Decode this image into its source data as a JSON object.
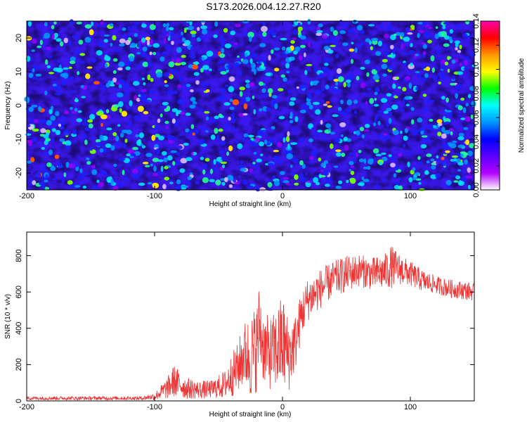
{
  "title": "S173.2026.004.12.27.R20",
  "chart_data": [
    {
      "type": "heatmap",
      "xlabel": "Height of straight line (km)",
      "ylabel": "Frequency (Hz)",
      "xlim": [
        -200,
        150
      ],
      "ylim": [
        -25,
        25
      ],
      "x_ticks": [
        -200,
        -100,
        0,
        100
      ],
      "x_tick_labels": [
        "-200",
        "-100",
        "0",
        "100"
      ],
      "y_ticks": [
        -20,
        -10,
        0,
        10,
        20
      ],
      "y_tick_labels": [
        "-20",
        "-10",
        "0",
        "10",
        "20"
      ],
      "colorbar": {
        "label": "Normalized spectral amplitude",
        "range": [
          0.0,
          0.14
        ],
        "ticks": [
          0.0,
          0.02,
          0.04,
          0.06,
          0.08,
          0.1,
          0.12,
          0.14
        ],
        "tick_labels": [
          "0.00",
          "0.02",
          "0.04",
          "0.06",
          "0.08",
          "0.10",
          "0.12",
          "0.14"
        ],
        "colors": [
          "#ffffff",
          "#b400ff",
          "#5a00ff",
          "#0000ff",
          "#0096ff",
          "#00ffff",
          "#00ff00",
          "#ffff00",
          "#ff9600",
          "#ff0000",
          "#ff00aa"
        ]
      },
      "description_values": "noise field: amplitudes mostly 0.02–0.05 (blue), frequent 0.05–0.07 patches (cyan/green), rare peaks up to ~0.12 (yellow/orange/red)"
    },
    {
      "type": "line",
      "xlabel": "Height of straight line (km)",
      "ylabel": "SNR (10 * v/v)",
      "xlim": [
        -200,
        150
      ],
      "ylim": [
        0,
        930
      ],
      "x_ticks": [
        -200,
        -100,
        0,
        100
      ],
      "x_tick_labels": [
        "-200",
        "-100",
        "0",
        "100"
      ],
      "y_ticks": [
        0,
        200,
        400,
        600,
        800
      ],
      "y_tick_labels": [
        "0",
        "200",
        "400",
        "600",
        "800"
      ],
      "series": [
        {
          "name": "SNR",
          "color": "#ee3333",
          "envelope_x": [
            -200,
            -150,
            -110,
            -100,
            -90,
            -85,
            -75,
            -65,
            -55,
            -45,
            -40,
            -35,
            -30,
            -25,
            -20,
            -18,
            -15,
            -10,
            -5,
            0,
            5,
            10,
            15,
            20,
            30,
            40,
            50,
            60,
            70,
            80,
            85,
            90,
            100,
            110,
            120,
            130,
            140,
            150
          ],
          "envelope_mid": [
            15,
            15,
            15,
            25,
            70,
            110,
            70,
            60,
            65,
            90,
            140,
            180,
            260,
            240,
            300,
            420,
            300,
            260,
            280,
            320,
            250,
            320,
            480,
            560,
            620,
            670,
            700,
            720,
            700,
            710,
            740,
            730,
            700,
            660,
            640,
            620,
            610,
            600
          ],
          "envelope_amp": [
            10,
            10,
            10,
            20,
            60,
            90,
            60,
            50,
            50,
            80,
            120,
            140,
            180,
            230,
            250,
            250,
            200,
            200,
            220,
            280,
            200,
            160,
            130,
            120,
            110,
            100,
            100,
            90,
            90,
            100,
            120,
            90,
            70,
            60,
            50,
            50,
            50,
            50
          ]
        }
      ]
    }
  ]
}
